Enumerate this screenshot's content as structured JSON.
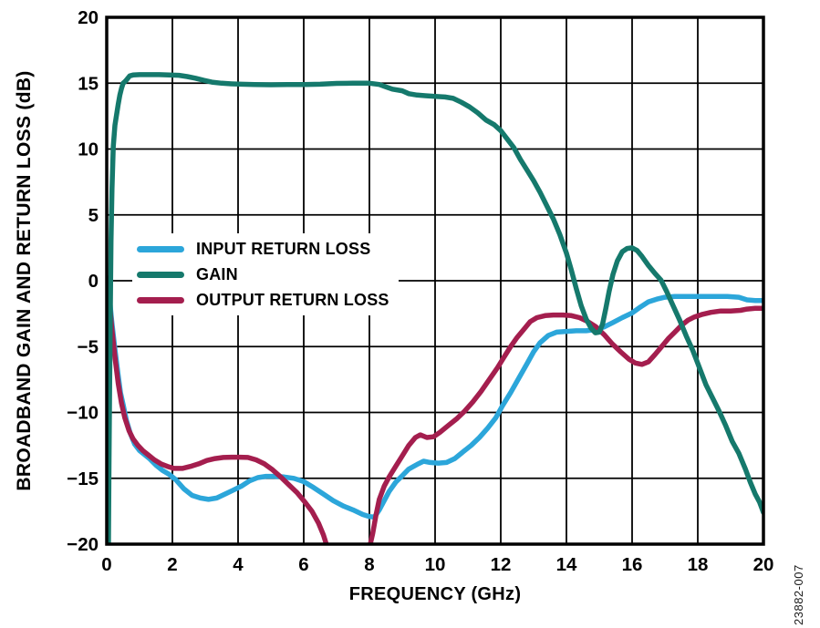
{
  "figure": {
    "y_axis_title": "BROADBAND GAIN AND RETURN LOSS (dB)",
    "x_axis_title": "FREQUENCY (GHz)",
    "watermark": "23882-007"
  },
  "colors": {
    "input_return_loss": "#2CA6DA",
    "gain": "#15796C",
    "output_return_loss": "#A41E4E",
    "grid": "#000000",
    "frame": "#000000",
    "text": "#000000"
  },
  "chart_data": {
    "type": "line",
    "title": "",
    "xlabel": "FREQUENCY (GHz)",
    "ylabel": "BROADBAND GAIN AND RETURN LOSS (dB)",
    "xlim": [
      0,
      20
    ],
    "ylim": [
      -20,
      20
    ],
    "xticks": [
      0,
      2,
      4,
      6,
      8,
      10,
      12,
      14,
      16,
      18,
      20
    ],
    "yticks": [
      20,
      15,
      10,
      5,
      0,
      -5,
      -10,
      -15,
      -20
    ],
    "grid": true,
    "legend_position": "inside-left-middle",
    "legend_order": [
      "INPUT RETURN LOSS",
      "GAIN",
      "OUTPUT RETURN LOSS"
    ],
    "series": [
      {
        "name": "INPUT RETURN LOSS",
        "color": "#2CA6DA",
        "points": [
          [
            0.03,
            0.2
          ],
          [
            0.08,
            -1.2
          ],
          [
            0.15,
            -3.0
          ],
          [
            0.25,
            -5.2
          ],
          [
            0.35,
            -7.2
          ],
          [
            0.42,
            -8.5
          ],
          [
            0.5,
            -9.4
          ],
          [
            0.6,
            -10.6
          ],
          [
            0.72,
            -11.6
          ],
          [
            0.85,
            -12.4
          ],
          [
            1.0,
            -12.9
          ],
          [
            1.15,
            -13.2
          ],
          [
            1.3,
            -13.5
          ],
          [
            1.5,
            -14.0
          ],
          [
            1.7,
            -14.4
          ],
          [
            1.9,
            -14.7
          ],
          [
            2.1,
            -15.1
          ],
          [
            2.35,
            -15.8
          ],
          [
            2.6,
            -16.3
          ],
          [
            2.85,
            -16.5
          ],
          [
            3.1,
            -16.6
          ],
          [
            3.35,
            -16.5
          ],
          [
            3.6,
            -16.2
          ],
          [
            3.85,
            -15.9
          ],
          [
            4.1,
            -15.6
          ],
          [
            4.35,
            -15.2
          ],
          [
            4.6,
            -14.95
          ],
          [
            4.85,
            -14.85
          ],
          [
            5.1,
            -14.85
          ],
          [
            5.4,
            -14.9
          ],
          [
            5.7,
            -15.0
          ],
          [
            6.0,
            -15.25
          ],
          [
            6.3,
            -15.7
          ],
          [
            6.6,
            -16.2
          ],
          [
            6.9,
            -16.7
          ],
          [
            7.2,
            -17.1
          ],
          [
            7.5,
            -17.4
          ],
          [
            7.8,
            -17.75
          ],
          [
            8.0,
            -17.9
          ],
          [
            8.15,
            -17.95
          ],
          [
            8.3,
            -17.4
          ],
          [
            8.45,
            -16.7
          ],
          [
            8.6,
            -16.0
          ],
          [
            8.8,
            -15.3
          ],
          [
            9.0,
            -14.8
          ],
          [
            9.2,
            -14.3
          ],
          [
            9.45,
            -13.95
          ],
          [
            9.65,
            -13.7
          ],
          [
            9.85,
            -13.8
          ],
          [
            10.1,
            -13.85
          ],
          [
            10.35,
            -13.8
          ],
          [
            10.6,
            -13.5
          ],
          [
            10.85,
            -13.0
          ],
          [
            11.1,
            -12.5
          ],
          [
            11.35,
            -11.9
          ],
          [
            11.6,
            -11.2
          ],
          [
            11.85,
            -10.4
          ],
          [
            12.05,
            -9.5
          ],
          [
            12.3,
            -8.5
          ],
          [
            12.55,
            -7.4
          ],
          [
            12.8,
            -6.3
          ],
          [
            13.0,
            -5.4
          ],
          [
            13.2,
            -4.7
          ],
          [
            13.45,
            -4.15
          ],
          [
            13.7,
            -3.9
          ],
          [
            14.0,
            -3.85
          ],
          [
            14.3,
            -3.8
          ],
          [
            14.6,
            -3.8
          ],
          [
            14.9,
            -3.7
          ],
          [
            15.15,
            -3.5
          ],
          [
            15.4,
            -3.2
          ],
          [
            15.7,
            -2.8
          ],
          [
            16.0,
            -2.45
          ],
          [
            16.25,
            -2.0
          ],
          [
            16.5,
            -1.6
          ],
          [
            16.75,
            -1.4
          ],
          [
            17.0,
            -1.25
          ],
          [
            17.3,
            -1.2
          ],
          [
            17.7,
            -1.2
          ],
          [
            18.1,
            -1.2
          ],
          [
            18.5,
            -1.2
          ],
          [
            18.9,
            -1.2
          ],
          [
            19.25,
            -1.25
          ],
          [
            19.5,
            -1.45
          ],
          [
            19.75,
            -1.5
          ],
          [
            20,
            -1.5
          ]
        ]
      },
      {
        "name": "GAIN",
        "color": "#15796C",
        "points": [
          [
            0.05,
            -21
          ],
          [
            0.07,
            -14
          ],
          [
            0.09,
            -8
          ],
          [
            0.11,
            -2
          ],
          [
            0.13,
            3
          ],
          [
            0.16,
            7
          ],
          [
            0.2,
            10.2
          ],
          [
            0.25,
            11.8
          ],
          [
            0.3,
            12.6
          ],
          [
            0.35,
            13.4
          ],
          [
            0.4,
            14.1
          ],
          [
            0.45,
            14.6
          ],
          [
            0.5,
            15.0
          ],
          [
            0.55,
            15.1
          ],
          [
            0.62,
            15.3
          ],
          [
            0.7,
            15.55
          ],
          [
            0.8,
            15.62
          ],
          [
            1.0,
            15.65
          ],
          [
            1.3,
            15.65
          ],
          [
            1.6,
            15.65
          ],
          [
            1.9,
            15.62
          ],
          [
            2.2,
            15.6
          ],
          [
            2.45,
            15.5
          ],
          [
            2.7,
            15.38
          ],
          [
            2.95,
            15.22
          ],
          [
            3.2,
            15.08
          ],
          [
            3.5,
            15.0
          ],
          [
            3.8,
            14.95
          ],
          [
            4.1,
            14.92
          ],
          [
            4.5,
            14.9
          ],
          [
            5.0,
            14.88
          ],
          [
            5.5,
            14.9
          ],
          [
            6.0,
            14.9
          ],
          [
            6.5,
            14.92
          ],
          [
            7.0,
            14.98
          ],
          [
            7.5,
            15.0
          ],
          [
            8.0,
            15.0
          ],
          [
            8.3,
            14.9
          ],
          [
            8.5,
            14.72
          ],
          [
            8.7,
            14.55
          ],
          [
            9.0,
            14.42
          ],
          [
            9.2,
            14.2
          ],
          [
            9.45,
            14.1
          ],
          [
            9.7,
            14.05
          ],
          [
            10.0,
            14.0
          ],
          [
            10.3,
            13.95
          ],
          [
            10.55,
            13.85
          ],
          [
            10.8,
            13.55
          ],
          [
            11.05,
            13.2
          ],
          [
            11.3,
            12.75
          ],
          [
            11.55,
            12.2
          ],
          [
            11.8,
            11.85
          ],
          [
            12.0,
            11.4
          ],
          [
            12.2,
            10.75
          ],
          [
            12.4,
            10.1
          ],
          [
            12.6,
            9.2
          ],
          [
            12.8,
            8.4
          ],
          [
            13.0,
            7.6
          ],
          [
            13.2,
            6.7
          ],
          [
            13.4,
            5.7
          ],
          [
            13.6,
            4.7
          ],
          [
            13.8,
            3.5
          ],
          [
            14.0,
            2.1
          ],
          [
            14.15,
            0.8
          ],
          [
            14.3,
            -0.6
          ],
          [
            14.45,
            -1.9
          ],
          [
            14.6,
            -2.9
          ],
          [
            14.75,
            -3.6
          ],
          [
            14.88,
            -3.95
          ],
          [
            15.0,
            -3.9
          ],
          [
            15.1,
            -3.3
          ],
          [
            15.2,
            -2.1
          ],
          [
            15.3,
            -0.8
          ],
          [
            15.42,
            0.5
          ],
          [
            15.55,
            1.5
          ],
          [
            15.7,
            2.2
          ],
          [
            15.85,
            2.45
          ],
          [
            16.0,
            2.5
          ],
          [
            16.15,
            2.3
          ],
          [
            16.3,
            1.85
          ],
          [
            16.5,
            1.15
          ],
          [
            16.7,
            0.55
          ],
          [
            16.88,
            0.05
          ],
          [
            17.05,
            -0.8
          ],
          [
            17.25,
            -1.9
          ],
          [
            17.45,
            -3.0
          ],
          [
            17.65,
            -4.2
          ],
          [
            17.85,
            -5.3
          ],
          [
            18.05,
            -6.6
          ],
          [
            18.25,
            -7.9
          ],
          [
            18.45,
            -8.9
          ],
          [
            18.65,
            -9.9
          ],
          [
            18.85,
            -11.0
          ],
          [
            19.05,
            -12.2
          ],
          [
            19.25,
            -13.1
          ],
          [
            19.45,
            -14.3
          ],
          [
            19.6,
            -15.3
          ],
          [
            19.75,
            -16.2
          ],
          [
            19.88,
            -16.8
          ],
          [
            20,
            -17.6
          ]
        ]
      },
      {
        "name": "OUTPUT RETURN LOSS",
        "color": "#A41E4E",
        "points": [
          [
            0.03,
            0.2
          ],
          [
            0.08,
            -1.6
          ],
          [
            0.15,
            -3.5
          ],
          [
            0.25,
            -5.8
          ],
          [
            0.35,
            -7.8
          ],
          [
            0.45,
            -9.3
          ],
          [
            0.55,
            -10.4
          ],
          [
            0.68,
            -11.4
          ],
          [
            0.8,
            -12.0
          ],
          [
            0.95,
            -12.5
          ],
          [
            1.1,
            -12.9
          ],
          [
            1.25,
            -13.2
          ],
          [
            1.45,
            -13.6
          ],
          [
            1.65,
            -13.9
          ],
          [
            1.85,
            -14.1
          ],
          [
            2.05,
            -14.25
          ],
          [
            2.3,
            -14.25
          ],
          [
            2.55,
            -14.1
          ],
          [
            2.8,
            -13.9
          ],
          [
            3.05,
            -13.65
          ],
          [
            3.3,
            -13.5
          ],
          [
            3.55,
            -13.42
          ],
          [
            3.8,
            -13.4
          ],
          [
            4.05,
            -13.4
          ],
          [
            4.3,
            -13.42
          ],
          [
            4.55,
            -13.6
          ],
          [
            4.8,
            -13.9
          ],
          [
            5.05,
            -14.35
          ],
          [
            5.3,
            -14.9
          ],
          [
            5.55,
            -15.5
          ],
          [
            5.8,
            -16.1
          ],
          [
            6.05,
            -16.85
          ],
          [
            6.25,
            -17.5
          ],
          [
            6.45,
            -18.4
          ],
          [
            6.6,
            -19.3
          ],
          [
            6.75,
            -20.5
          ],
          [
            6.95,
            -21.5
          ],
          [
            7.2,
            -22.2
          ],
          [
            7.5,
            -22.5
          ],
          [
            7.8,
            -21.5
          ],
          [
            8.0,
            -20.3
          ],
          [
            8.1,
            -19.2
          ],
          [
            8.2,
            -17.8
          ],
          [
            8.3,
            -16.6
          ],
          [
            8.45,
            -15.6
          ],
          [
            8.6,
            -14.9
          ],
          [
            8.8,
            -14.1
          ],
          [
            9.0,
            -13.3
          ],
          [
            9.2,
            -12.5
          ],
          [
            9.4,
            -11.9
          ],
          [
            9.55,
            -11.7
          ],
          [
            9.75,
            -11.9
          ],
          [
            9.95,
            -11.85
          ],
          [
            10.15,
            -11.5
          ],
          [
            10.4,
            -11.0
          ],
          [
            10.65,
            -10.5
          ],
          [
            10.9,
            -9.9
          ],
          [
            11.15,
            -9.2
          ],
          [
            11.4,
            -8.4
          ],
          [
            11.65,
            -7.5
          ],
          [
            11.9,
            -6.6
          ],
          [
            12.1,
            -5.8
          ],
          [
            12.3,
            -5.0
          ],
          [
            12.5,
            -4.3
          ],
          [
            12.7,
            -3.7
          ],
          [
            12.9,
            -3.1
          ],
          [
            13.1,
            -2.8
          ],
          [
            13.35,
            -2.65
          ],
          [
            13.6,
            -2.6
          ],
          [
            13.9,
            -2.6
          ],
          [
            14.15,
            -2.65
          ],
          [
            14.4,
            -2.8
          ],
          [
            14.65,
            -3.1
          ],
          [
            14.9,
            -3.5
          ],
          [
            15.15,
            -4.1
          ],
          [
            15.4,
            -4.8
          ],
          [
            15.65,
            -5.4
          ],
          [
            15.9,
            -5.95
          ],
          [
            16.1,
            -6.25
          ],
          [
            16.3,
            -6.35
          ],
          [
            16.5,
            -6.15
          ],
          [
            16.7,
            -5.6
          ],
          [
            16.9,
            -5.0
          ],
          [
            17.1,
            -4.4
          ],
          [
            17.3,
            -3.9
          ],
          [
            17.5,
            -3.4
          ],
          [
            17.7,
            -3.0
          ],
          [
            17.9,
            -2.75
          ],
          [
            18.15,
            -2.55
          ],
          [
            18.4,
            -2.4
          ],
          [
            18.7,
            -2.3
          ],
          [
            19.0,
            -2.3
          ],
          [
            19.3,
            -2.25
          ],
          [
            19.5,
            -2.15
          ],
          [
            19.75,
            -2.1
          ],
          [
            20,
            -2.1
          ]
        ]
      }
    ]
  }
}
